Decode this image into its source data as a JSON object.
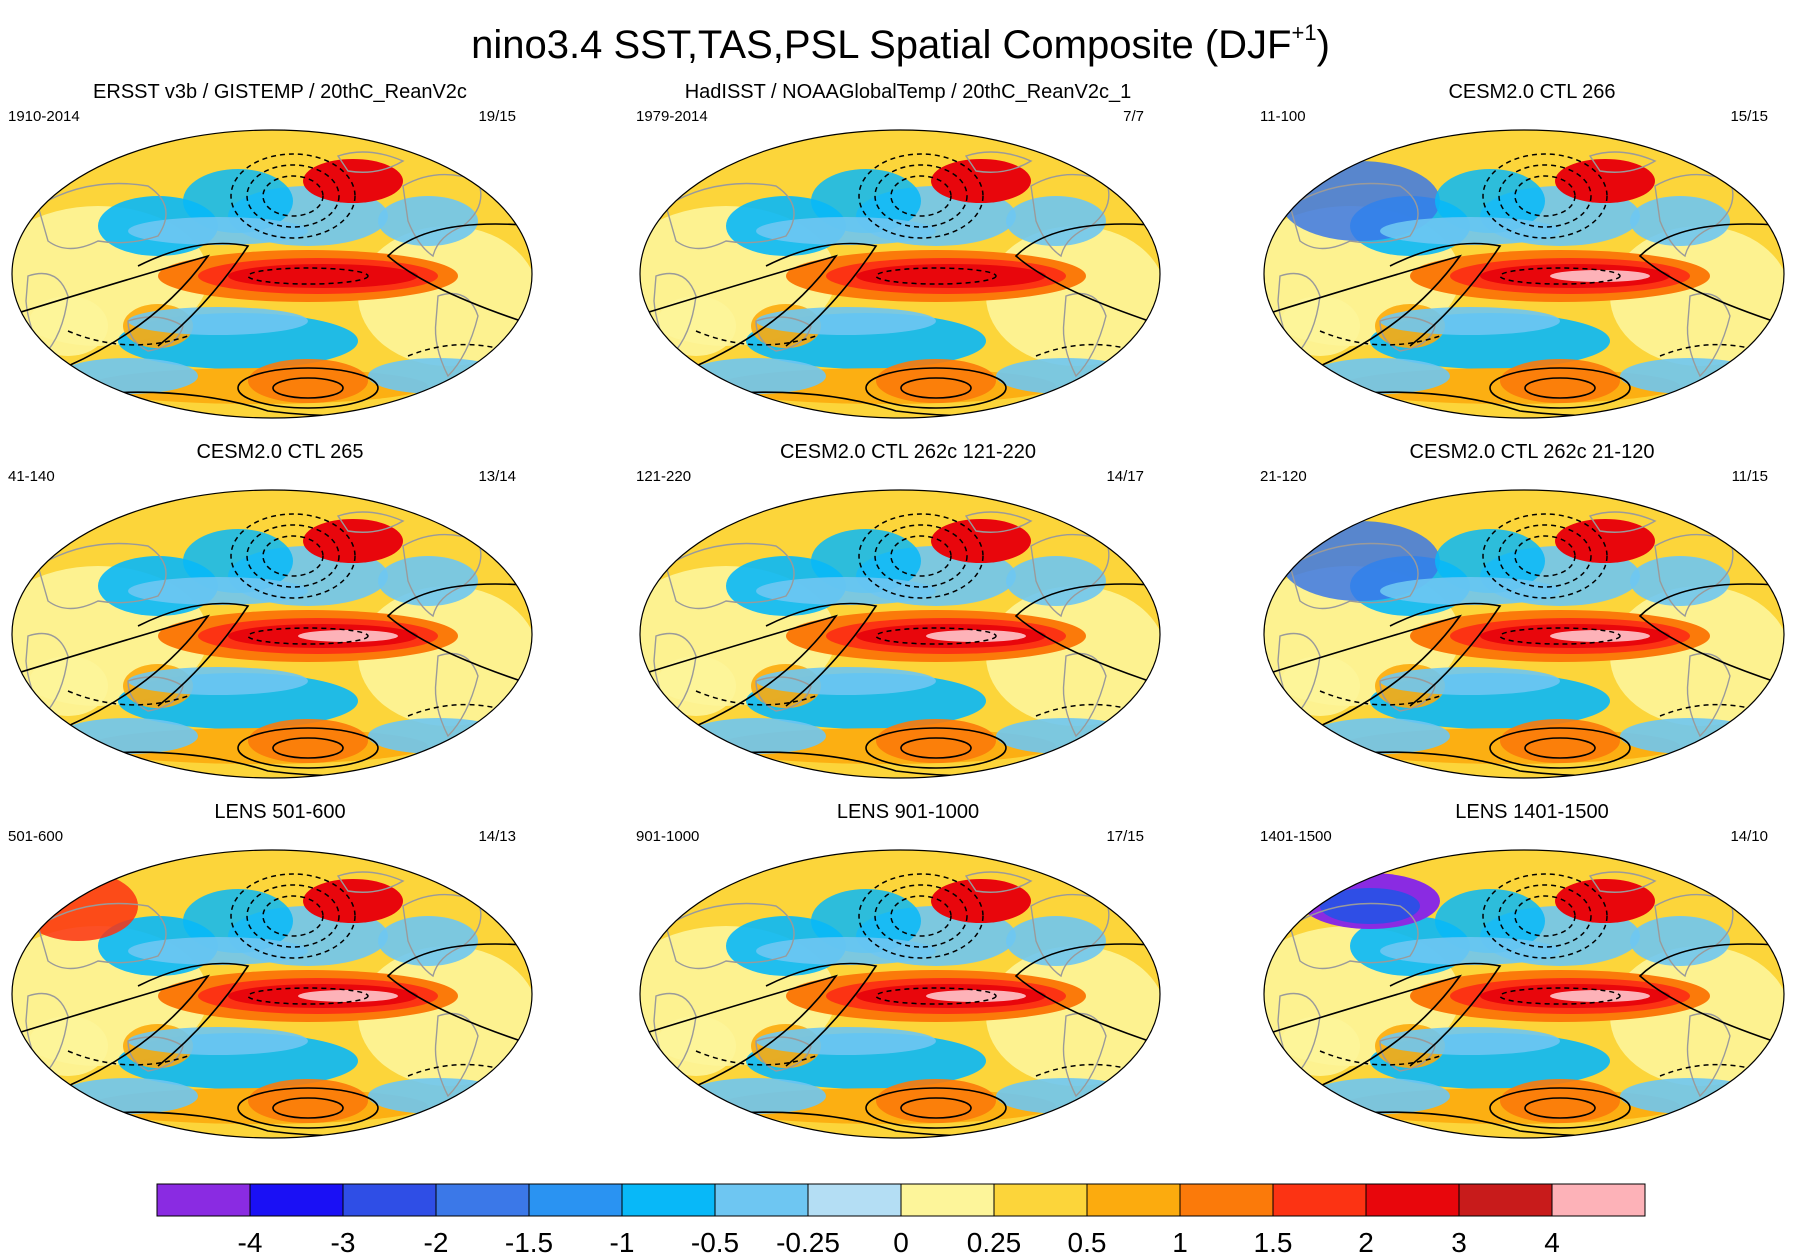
{
  "title": "nino3.4 SST,TAS,PSL Spatial Composite (DJF",
  "title_superscript": "+1",
  "title_suffix": ")",
  "panels": [
    {
      "title": "ERSST v3b / GISTEMP / 20thC_ReanV2c",
      "years": "1910-2014",
      "count": "19/15"
    },
    {
      "title": "HadISST / NOAAGlobalTemp / 20thC_ReanV2c_1",
      "years": "1979-2014",
      "count": "7/7"
    },
    {
      "title": "CESM2.0 CTL 266",
      "years": "11-100",
      "count": "15/15"
    },
    {
      "title": "CESM2.0 CTL 265",
      "years": "41-140",
      "count": "13/14"
    },
    {
      "title": "CESM2.0 CTL 262c 121-220",
      "years": "121-220",
      "count": "14/17"
    },
    {
      "title": "CESM2.0 CTL 262c 21-120",
      "years": "21-120",
      "count": "11/15"
    },
    {
      "title": "LENS 501-600",
      "years": "501-600",
      "count": "14/13"
    },
    {
      "title": "LENS 901-1000",
      "years": "901-1000",
      "count": "17/15"
    },
    {
      "title": "LENS 1401-1500",
      "years": "1401-1500",
      "count": "14/10"
    }
  ],
  "colorbar": {
    "labels": [
      "-4",
      "-3",
      "-2",
      "-1.5",
      "-1",
      "-0.5",
      "-0.25",
      "0",
      "0.25",
      "0.5",
      "1",
      "1.5",
      "2",
      "3",
      "4"
    ],
    "colors": [
      "#8a2be2",
      "#1a10f5",
      "#2f4ee6",
      "#3b78e8",
      "#2a93f2",
      "#08b8f8",
      "#6ec6f2",
      "#b4def4",
      "#fdf59a",
      "#fcd53a",
      "#fcab0e",
      "#fb7a0a",
      "#fc3313",
      "#e8060c",
      "#c81b1b",
      "#fdb2b8"
    ]
  }
}
